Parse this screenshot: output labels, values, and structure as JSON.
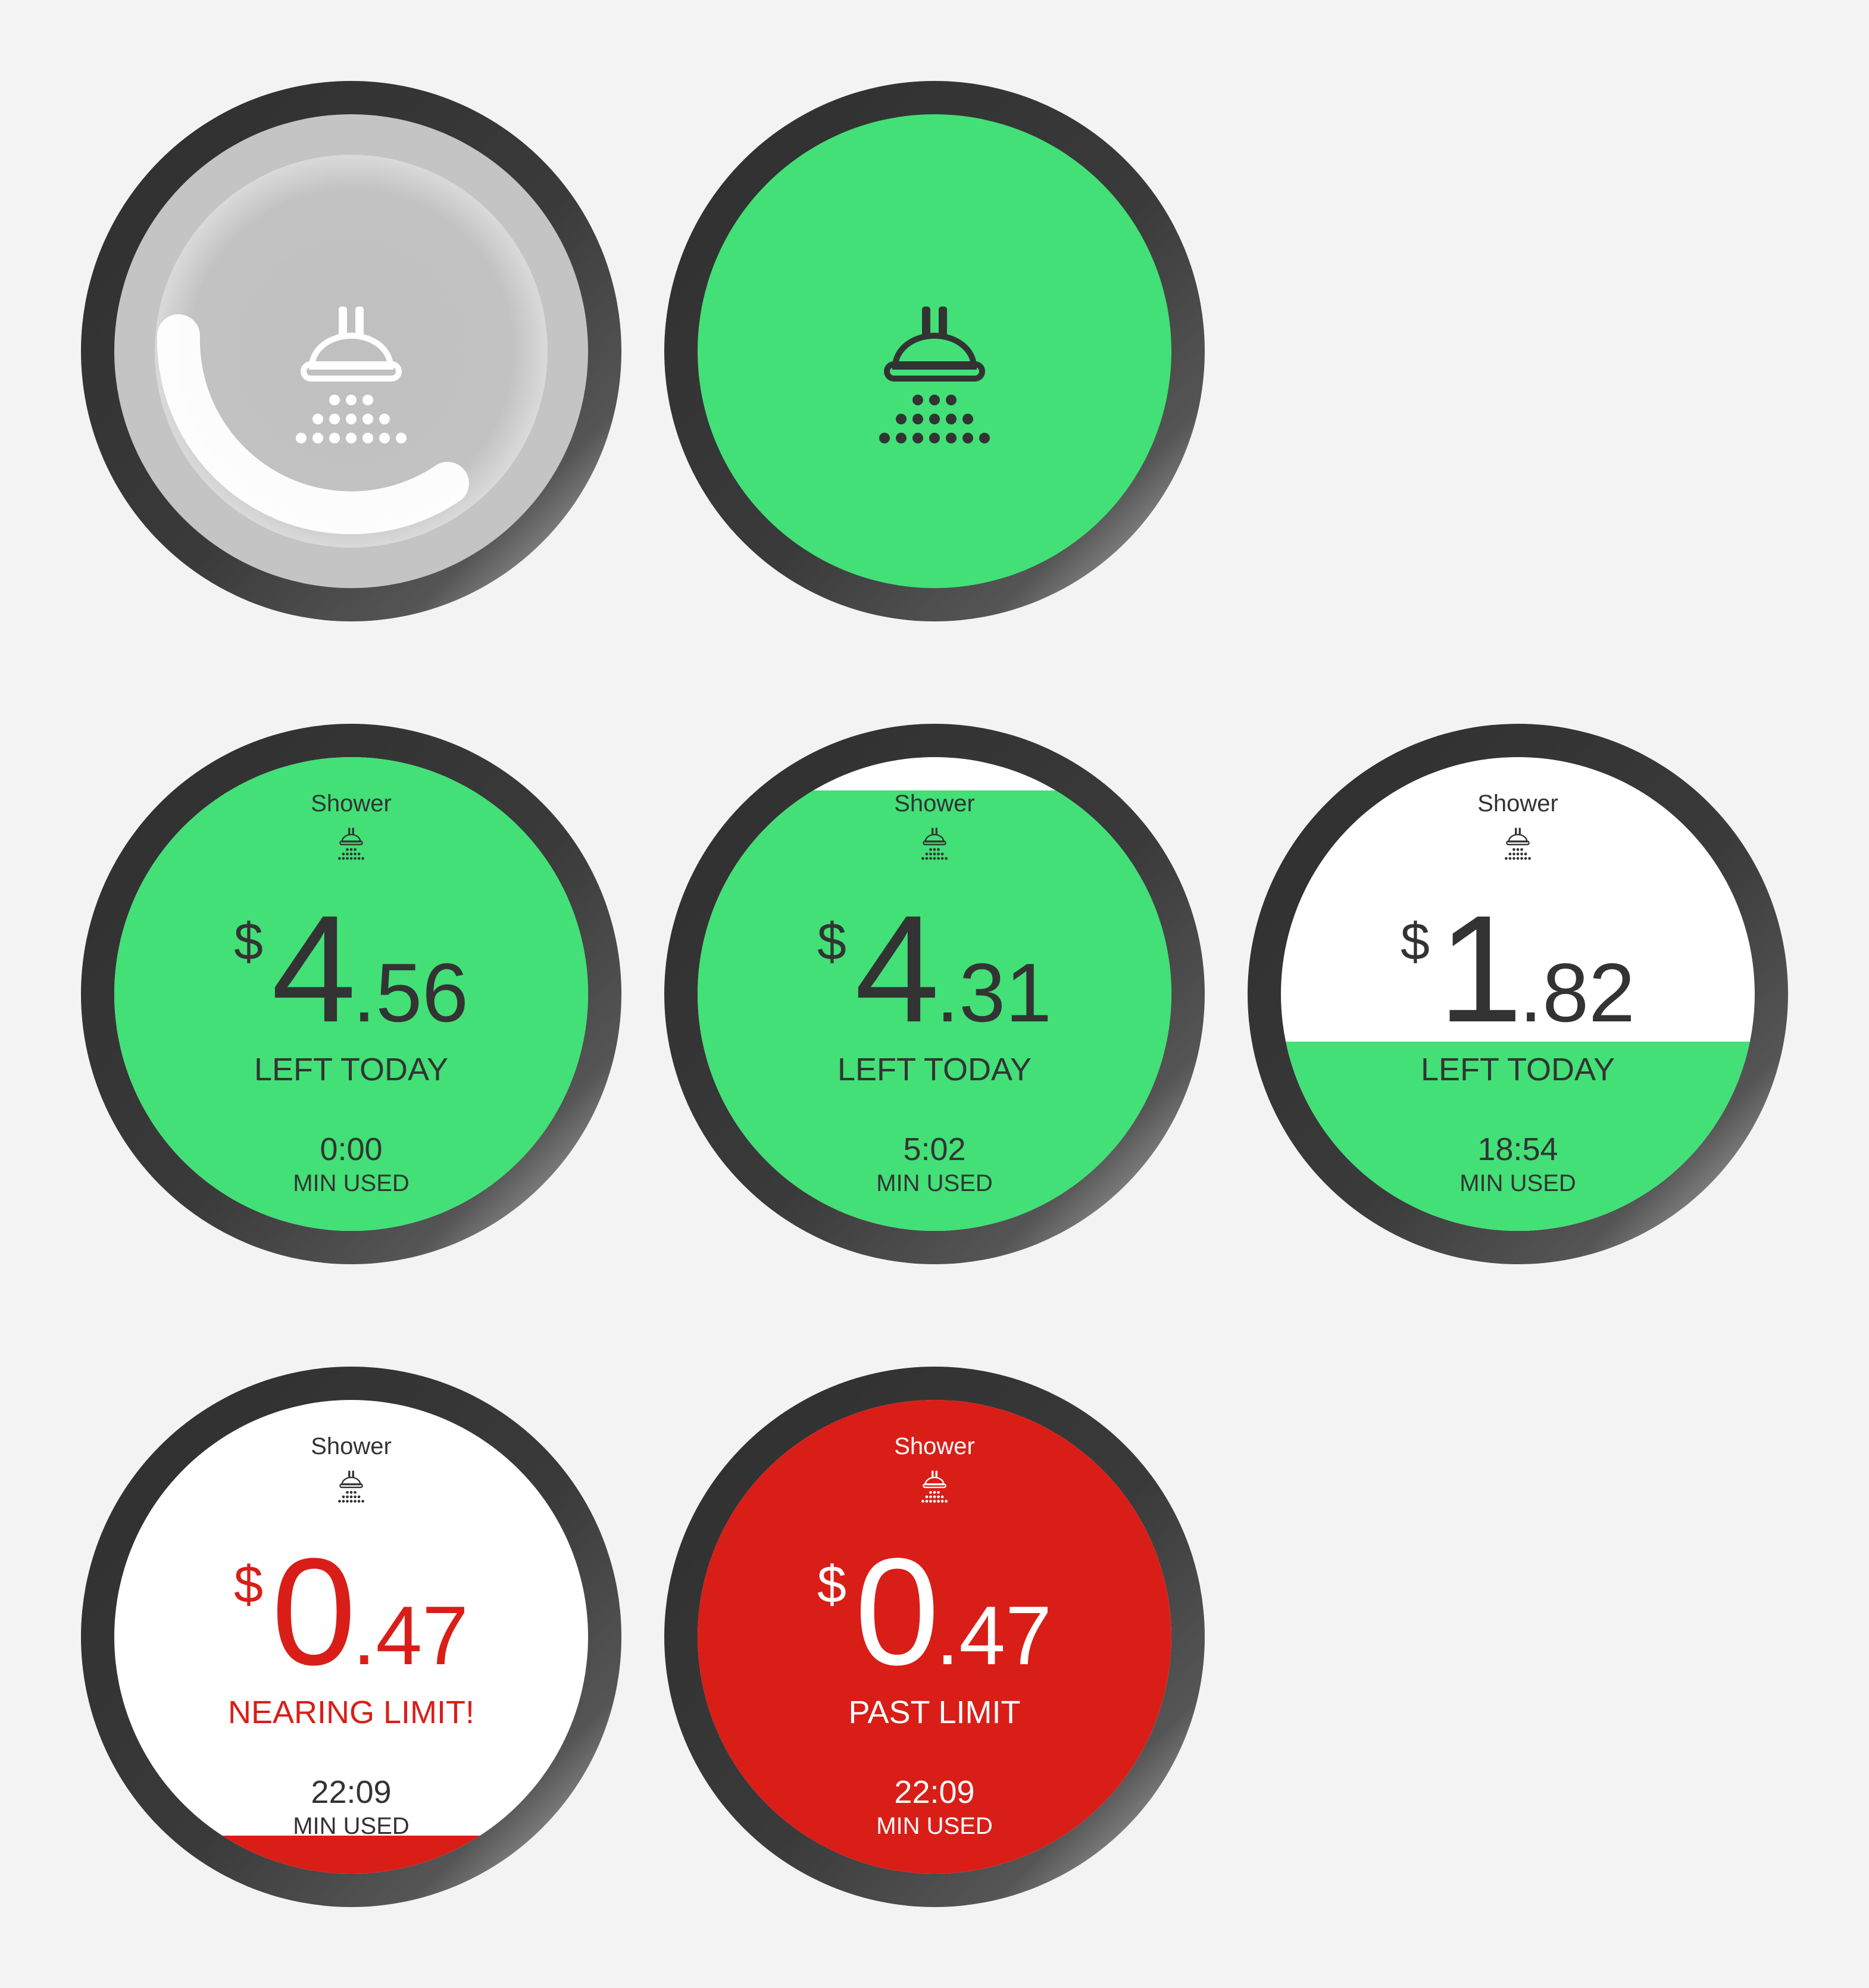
{
  "colors": {
    "green": "#42e077",
    "red": "#d91e18",
    "white": "#ffffff",
    "text": "#333333",
    "loading_gray": "#c2c2c2"
  },
  "icons": {
    "shower": "shower-icon"
  },
  "watches": [
    {
      "state": "loading",
      "progress": 0.6
    },
    {
      "state": "ready"
    },
    {
      "app_name": "Shower",
      "currency": "$",
      "amount_int": "4",
      "amount_dec": ".56",
      "status": "LEFT TODAY",
      "time": "0:00",
      "time_label": "MIN USED",
      "fill_fraction": 1.0
    },
    {
      "app_name": "Shower",
      "currency": "$",
      "amount_int": "4",
      "amount_dec": ".31",
      "status": "LEFT TODAY",
      "time": "5:02",
      "time_label": "MIN USED",
      "fill_fraction": 0.93
    },
    {
      "app_name": "Shower",
      "currency": "$",
      "amount_int": "1",
      "amount_dec": ".82",
      "status": "LEFT TODAY",
      "time": "18:54",
      "time_label": "MIN USED",
      "fill_fraction": 0.4
    },
    {
      "app_name": "Shower",
      "currency": "$",
      "amount_int": "0",
      "amount_dec": ".47",
      "status": "NEARING LIMIT!",
      "time": "22:09",
      "time_label": "MIN USED",
      "fill_fraction": 0.08
    },
    {
      "app_name": "Shower",
      "currency": "$",
      "amount_int": "0",
      "amount_dec": ".47",
      "status": "PAST LIMIT",
      "time": "22:09",
      "time_label": "MIN USED",
      "fill_fraction": 1.0
    }
  ]
}
